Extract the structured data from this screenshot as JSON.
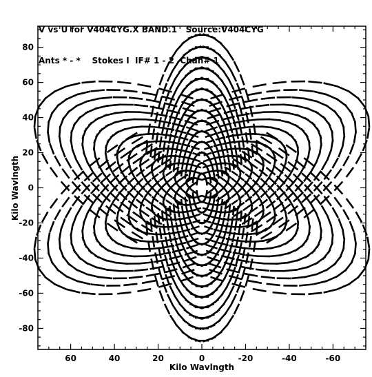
{
  "header": {
    "line1": "V vs U for V404CYG.X BAND.1   Source:V404CYG",
    "line2": "Ants * - *    Stokes I  IF# 1 - 2  Chan# 1"
  },
  "chart_data": {
    "type": "scatter",
    "title": "V vs U for V404CYG.X BAND.1   Source:V404CYG",
    "subtitle": "Ants * - *    Stokes I  IF# 1 - 2  Chan# 1",
    "xlabel": "Kilo Wavlngth",
    "ylabel": "Kilo Wavlngth",
    "x_axis_reversed": true,
    "xlim": [
      75,
      -75
    ],
    "ylim": [
      -92,
      92
    ],
    "xticks": [
      60,
      40,
      20,
      0,
      -20,
      -40,
      -60
    ],
    "xtick_labels": [
      "60",
      "40",
      "20",
      "0",
      "-20",
      "-40",
      "-60"
    ],
    "yticks": [
      80,
      60,
      40,
      20,
      0,
      -20,
      -40,
      -60,
      -80
    ],
    "ytick_labels": [
      "80",
      "60",
      "40",
      "20",
      "0",
      "-20",
      "-40",
      "-60",
      "-80"
    ],
    "grid": false,
    "marker": "short dashes (uv tracks, IF 1-2)",
    "series": [
      {
        "arm_angle_deg": 90,
        "hour_angle_coverage_deg": [
          -75,
          75
        ],
        "baselines_klambda": [
          8,
          14,
          20,
          26,
          32,
          38,
          44,
          50,
          56,
          62,
          68,
          74,
          80,
          87
        ]
      },
      {
        "arm_angle_deg": 210,
        "hour_angle_coverage_deg": [
          -75,
          75
        ],
        "baselines_klambda": [
          8,
          14,
          20,
          26,
          32,
          38,
          44,
          50,
          56,
          62,
          68,
          74,
          80,
          87
        ]
      },
      {
        "arm_angle_deg": 330,
        "hour_angle_coverage_deg": [
          -75,
          75
        ],
        "baselines_klambda": [
          8,
          14,
          20,
          26,
          32,
          38,
          44,
          50,
          56,
          62,
          68,
          74,
          80,
          87
        ]
      }
    ]
  }
}
